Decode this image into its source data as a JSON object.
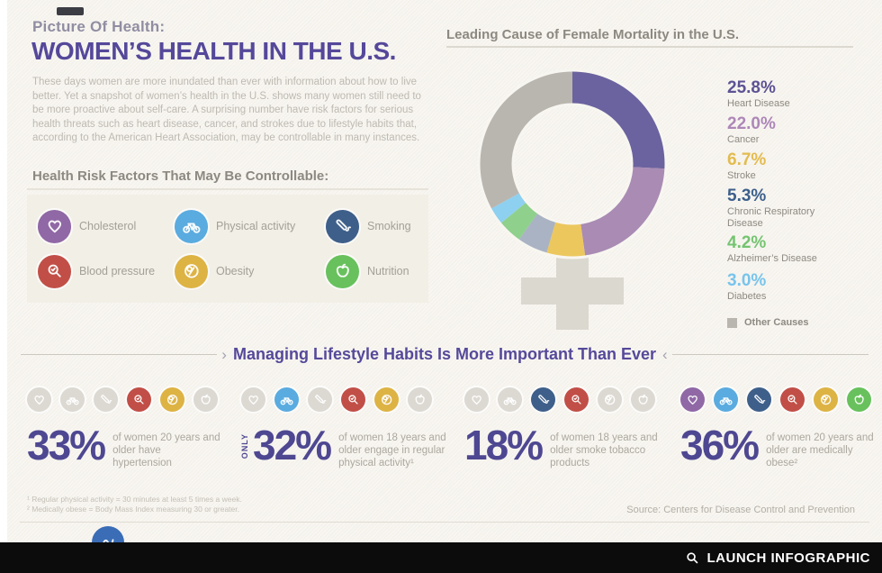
{
  "header": {
    "kicker": "Picture Of Health:",
    "title": "WOMEN’S HEALTH IN THE U.S.",
    "intro": "These days women are more inundated than ever with information about how to live better. Yet a snapshot of women’s health in the U.S. shows many women still need to be more proactive about self-care. A surprising number have risk factors for serious health threats such as heart disease, cancer, and strokes due to lifestyle habits that, according to the American Heart Association, may be controllable in many instances."
  },
  "icon_colors": {
    "heart": "#9068a5",
    "bike": "#5aabdf",
    "cigarette": "#3e5f8a",
    "magnifier": "#c14f47",
    "scale": "#ddb344",
    "apple": "#68c15c"
  },
  "inactive_icon_color": "#dcd9d2",
  "risk_factors": {
    "heading": "Health Risk Factors That May Be Controllable:",
    "items": [
      {
        "label": "Cholesterol",
        "icon": "heart"
      },
      {
        "label": "Physical activity",
        "icon": "bike"
      },
      {
        "label": "Smoking",
        "icon": "cigarette"
      },
      {
        "label": "Blood pressure",
        "icon": "magnifier"
      },
      {
        "label": "Obesity",
        "icon": "scale"
      },
      {
        "label": "Nutrition",
        "icon": "apple"
      }
    ]
  },
  "chart_data": {
    "type": "pie",
    "variant": "donut-female-symbol",
    "title": "Leading Cause of Female Mortality in the U.S.",
    "unit": "percent of female deaths",
    "legend_position": "right",
    "segments": [
      {
        "label": "Heart Disease",
        "value": 25.8,
        "value_label": "25.8%",
        "ring_color": "#6b639f",
        "text_color": "#5d5394"
      },
      {
        "label": "Cancer",
        "value": 22.0,
        "value_label": "22.0%",
        "ring_color": "#a98bb4",
        "text_color": "#ad87b8"
      },
      {
        "label": "Stroke",
        "value": 6.7,
        "value_label": "6.7%",
        "ring_color": "#ecc75e",
        "text_color": "#e3bb4e"
      },
      {
        "label": "Chronic Respiratory Disease",
        "value": 5.3,
        "value_label": "5.3%",
        "ring_color": "#a9b3c3",
        "text_color": "#3c5f8a"
      },
      {
        "label": "Alzheimer’s Disease",
        "value": 4.2,
        "value_label": "4.2%",
        "ring_color": "#8fd08c",
        "text_color": "#74c470"
      },
      {
        "label": "Diabetes",
        "value": 3.0,
        "value_label": "3.0%",
        "ring_color": "#8ed0f0",
        "text_color": "#77c4ec"
      }
    ],
    "other": {
      "label": "Other Causes",
      "value": 33.0,
      "ring_color": "#b9b6b0"
    }
  },
  "banner": {
    "text": "Managing Lifestyle Habits Is More Important Than Ever"
  },
  "stats": [
    {
      "value_label": "33%",
      "qualifier": "",
      "description": "of women 20 years and older have hypertension",
      "icons": [
        {
          "icon": "heart",
          "active": false
        },
        {
          "icon": "bike",
          "active": false
        },
        {
          "icon": "cigarette",
          "active": false
        },
        {
          "icon": "magnifier",
          "active": true
        },
        {
          "icon": "scale",
          "active": true
        },
        {
          "icon": "apple",
          "active": false
        }
      ]
    },
    {
      "value_label": "32%",
      "qualifier": "ONLY",
      "description": "of women 18 years and older engage in regular physical activity¹",
      "icons": [
        {
          "icon": "heart",
          "active": false
        },
        {
          "icon": "bike",
          "active": true
        },
        {
          "icon": "cigarette",
          "active": false
        },
        {
          "icon": "magnifier",
          "active": true
        },
        {
          "icon": "scale",
          "active": true
        },
        {
          "icon": "apple",
          "active": false
        }
      ]
    },
    {
      "value_label": "18%",
      "qualifier": "",
      "description": "of women 18 years and older smoke tobacco products",
      "icons": [
        {
          "icon": "heart",
          "active": false
        },
        {
          "icon": "bike",
          "active": false
        },
        {
          "icon": "cigarette",
          "active": true
        },
        {
          "icon": "magnifier",
          "active": true
        },
        {
          "icon": "scale",
          "active": false
        },
        {
          "icon": "apple",
          "active": false
        }
      ]
    },
    {
      "value_label": "36%",
      "qualifier": "",
      "description": "of women 20 years and older are medically obese²",
      "icons": [
        {
          "icon": "heart",
          "active": true
        },
        {
          "icon": "bike",
          "active": true
        },
        {
          "icon": "cigarette",
          "active": true
        },
        {
          "icon": "magnifier",
          "active": true
        },
        {
          "icon": "scale",
          "active": true
        },
        {
          "icon": "apple",
          "active": true
        }
      ]
    }
  ],
  "footnotes": [
    "¹ Regular physical activity = 30 minutes at least 5 times a week.",
    "² Medically obese = Body Mass Index measuring 30 or greater."
  ],
  "source": "Source: Centers for Disease Control and Prevention",
  "footer": {
    "launch_label": "LAUNCH INFOGRAPHIC"
  }
}
